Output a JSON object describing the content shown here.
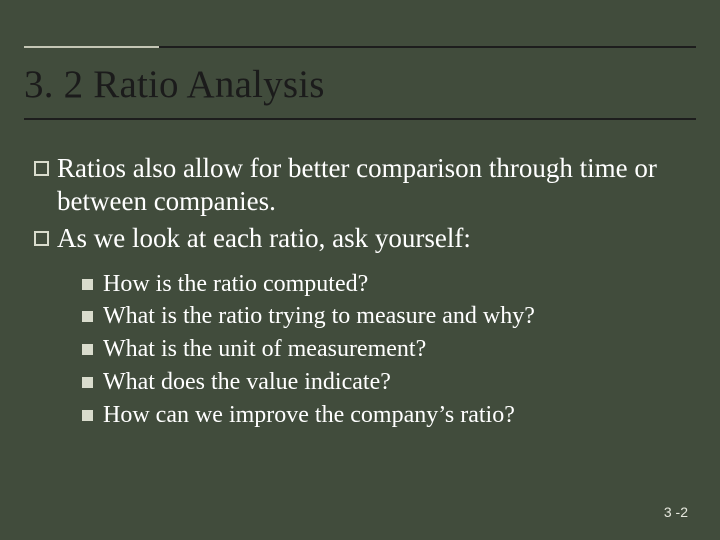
{
  "title": "3. 2 Ratio Analysis",
  "bullets": {
    "b1": "Ratios also allow for better comparison through time or between companies.",
    "b2": "As we look at each ratio, ask yourself:"
  },
  "sub": {
    "s1": "How is the ratio computed?",
    "s2": "What is the ratio trying to measure and why?",
    "s3": "What is the unit of measurement?",
    "s4": "What does the value indicate?",
    "s5": "How can we improve the company’s ratio?"
  },
  "footer": "3 -2",
  "colors": {
    "background": "#414c3c",
    "title_text": "#1b1b1b",
    "body_text": "#ffffff",
    "bullet_outline": "#d9dccd",
    "bullet_fill": "#d9dccd",
    "rule": "#1d1d1d",
    "rule_accent": "#c4c6b5"
  },
  "fonts": {
    "title_size_pt": 30,
    "body_size_pt": 20,
    "sub_size_pt": 18,
    "footer_size_pt": 11
  }
}
